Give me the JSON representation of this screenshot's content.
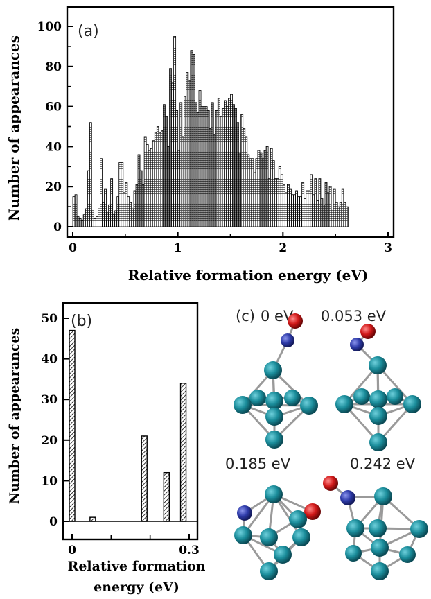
{
  "chart_data": [
    {
      "id": "a",
      "type": "bar",
      "panel_label": "(a)",
      "xlabel": "Relative formation  energy (eV)",
      "ylabel": "Number of appearances",
      "xlim": [
        0,
        3
      ],
      "ylim": [
        0,
        100
      ],
      "xticks": [
        "0",
        "1",
        "2",
        "3"
      ],
      "yticks": [
        "0",
        "20",
        "40",
        "60",
        "80",
        "100"
      ],
      "bin_width": 0.02,
      "x_start": 0.0,
      "values": [
        15,
        16,
        5,
        4,
        3,
        6,
        9,
        28,
        52,
        8,
        4,
        5,
        9,
        34,
        12,
        19,
        7,
        11,
        24,
        6,
        8,
        15,
        32,
        32,
        17,
        22,
        15,
        12,
        9,
        18,
        21,
        36,
        28,
        21,
        45,
        41,
        38,
        39,
        43,
        47,
        50,
        47,
        48,
        61,
        55,
        40,
        79,
        72,
        95,
        58,
        38,
        62,
        45,
        65,
        77,
        73,
        88,
        86,
        62,
        57,
        68,
        60,
        60,
        60,
        58,
        49,
        62,
        46,
        58,
        64,
        55,
        59,
        63,
        60,
        64,
        66,
        61,
        59,
        52,
        37,
        56,
        49,
        45,
        36,
        34,
        34,
        27,
        34,
        38,
        37,
        34,
        38,
        40,
        24,
        39,
        33,
        24,
        24,
        30,
        26,
        21,
        17,
        21,
        19,
        16,
        16,
        18,
        15,
        15,
        22,
        14,
        18,
        18,
        26,
        16,
        24,
        13,
        24,
        14,
        11,
        22,
        17,
        20,
        8,
        19,
        12,
        10,
        12,
        19,
        12,
        10
      ],
      "grid": false
    },
    {
      "id": "b",
      "type": "bar",
      "panel_label": "(b)",
      "xlabel_lines": [
        "Relative formation",
        "energy (eV)"
      ],
      "ylabel": "Number of appearances",
      "xlim": [
        0,
        0.3
      ],
      "ylim": [
        0,
        50
      ],
      "xticks": [
        "0",
        "0.3"
      ],
      "yticks": [
        "0",
        "10",
        "20",
        "30",
        "40",
        "50"
      ],
      "bars": [
        {
          "x": 0.0,
          "value": 47
        },
        {
          "x": 0.053,
          "value": 1
        },
        {
          "x": 0.185,
          "value": 21
        },
        {
          "x": 0.242,
          "value": 12
        },
        {
          "x": 0.285,
          "value": 34
        }
      ],
      "grid": false
    }
  ],
  "panel_c": {
    "label": "(c)",
    "structures": [
      {
        "energy": "0 eV"
      },
      {
        "energy": "0.053 eV"
      },
      {
        "energy": "0.185 eV"
      },
      {
        "energy": "0.242 eV"
      }
    ],
    "colors": {
      "metal": "#1a8c9a",
      "nitrogen": "#2d3aa8",
      "oxygen": "#d01818",
      "bond": "#9a9a9a"
    }
  }
}
